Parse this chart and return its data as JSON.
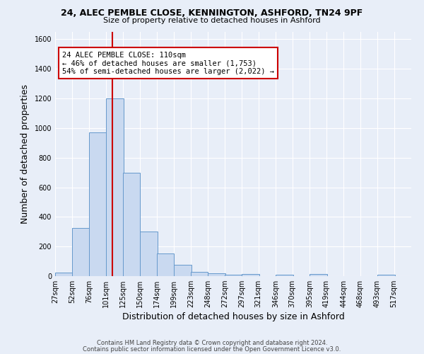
{
  "title1": "24, ALEC PEMBLE CLOSE, KENNINGTON, ASHFORD, TN24 9PF",
  "title2": "Size of property relative to detached houses in Ashford",
  "xlabel": "Distribution of detached houses by size in Ashford",
  "ylabel": "Number of detached properties",
  "categories": [
    "27sqm",
    "52sqm",
    "76sqm",
    "101sqm",
    "125sqm",
    "150sqm",
    "174sqm",
    "199sqm",
    "223sqm",
    "248sqm",
    "272sqm",
    "297sqm",
    "321sqm",
    "346sqm",
    "370sqm",
    "395sqm",
    "419sqm",
    "444sqm",
    "468sqm",
    "493sqm",
    "517sqm"
  ],
  "values": [
    25,
    325,
    970,
    1200,
    700,
    300,
    155,
    75,
    30,
    20,
    10,
    12,
    0,
    10,
    0,
    12,
    0,
    0,
    0,
    10,
    0
  ],
  "bar_color": "#c9d9f0",
  "bar_edge_color": "#6699cc",
  "vline_x": 110,
  "vline_color": "#cc0000",
  "annotation_line1": "24 ALEC PEMBLE CLOSE: 110sqm",
  "annotation_line2": "← 46% of detached houses are smaller (1,753)",
  "annotation_line3": "54% of semi-detached houses are larger (2,022) →",
  "annotation_box_color": "#ffffff",
  "annotation_border_color": "#cc0000",
  "ylim": [
    0,
    1650
  ],
  "yticks": [
    0,
    200,
    400,
    600,
    800,
    1000,
    1200,
    1400,
    1600
  ],
  "background_color": "#e8eef8",
  "grid_color": "#ffffff",
  "footer1": "Contains HM Land Registry data © Crown copyright and database right 2024.",
  "footer2": "Contains public sector information licensed under the Open Government Licence v3.0.",
  "bin_size": 25
}
